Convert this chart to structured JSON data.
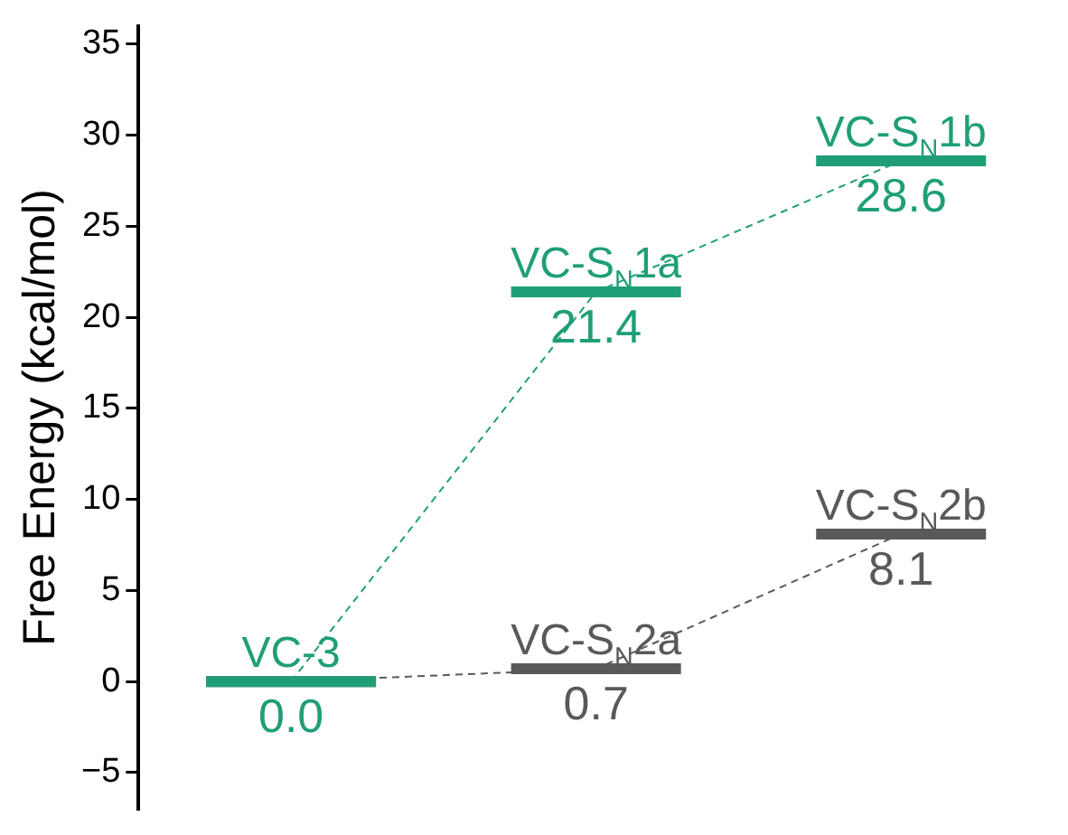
{
  "chart_data": {
    "type": "line",
    "ylabel": "Free Energy (kcal/mol)",
    "categories": [
      null,
      null,
      null
    ],
    "series": [
      {
        "color": "#1f9e77",
        "values": [
          0.0,
          21.4,
          28.6
        ],
        "value_labels": [
          "0.0",
          "21.4",
          "28.6"
        ]
      },
      {
        "color": "#595959",
        "values": [
          0.0,
          0.7,
          8.1
        ],
        "value_labels": [
          null,
          "0.7",
          "8.1"
        ]
      }
    ],
    "annotations": [
      {
        "text": "VC-3",
        "y": 0.0
      },
      {
        "text": "VC-S$_{N}$1a",
        "y": 21.4
      },
      {
        "text": "VC-S$_{N}$1b",
        "y": 28.6
      },
      {
        "text": "VC-S$_{N}$2a",
        "y": 0.7
      },
      {
        "text": "VC-S$_{N}$2b",
        "y": 8.1
      }
    ],
    "ylim": [
      -7,
      36
    ],
    "yticks": [
      -5,
      0,
      5,
      10,
      15,
      20,
      25,
      30,
      35
    ],
    "grid": false,
    "legend": false,
    "marker": "none",
    "line_style": "dashed"
  }
}
